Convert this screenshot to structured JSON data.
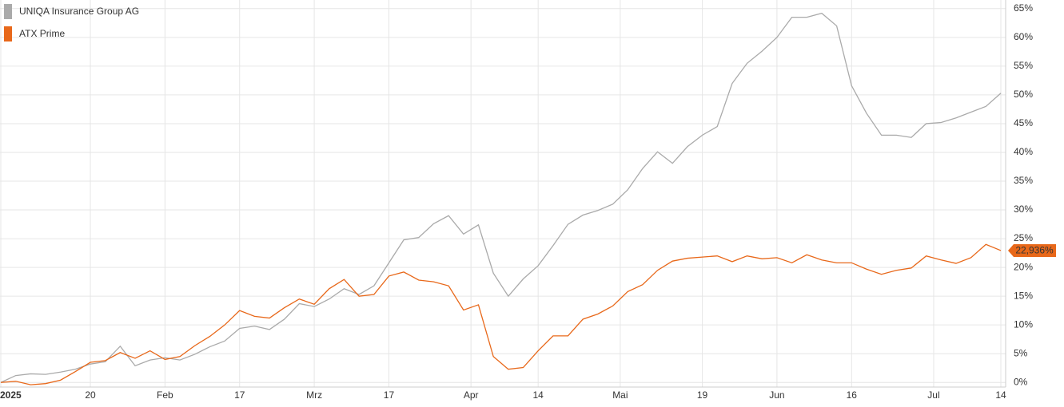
{
  "chart_data": {
    "type": "line",
    "legend": "top-left",
    "grid": true,
    "x": [
      0,
      2,
      4,
      6,
      8,
      10,
      12,
      14,
      16,
      18,
      20,
      22,
      24,
      26,
      28,
      30,
      32,
      34,
      36,
      38,
      40,
      42,
      44,
      46,
      48,
      50,
      52,
      54,
      56,
      58,
      60,
      62,
      64,
      66,
      68,
      70,
      72,
      74,
      76,
      78,
      80,
      82,
      84,
      86,
      88,
      90,
      92,
      94,
      96,
      98,
      100,
      102,
      104,
      106,
      108,
      110,
      112,
      114,
      116,
      118,
      120,
      122,
      124,
      126,
      128,
      130,
      132,
      134
    ],
    "xlim": [
      0,
      134
    ],
    "xticks": [
      {
        "value": 0,
        "label": "2025"
      },
      {
        "value": 12,
        "label": "20"
      },
      {
        "value": 22,
        "label": "Feb"
      },
      {
        "value": 32,
        "label": "17"
      },
      {
        "value": 42,
        "label": "Mrz"
      },
      {
        "value": 52,
        "label": "17"
      },
      {
        "value": 63,
        "label": "Apr"
      },
      {
        "value": 72,
        "label": "14"
      },
      {
        "value": 83,
        "label": "Mai"
      },
      {
        "value": 94,
        "label": "19"
      },
      {
        "value": 104,
        "label": "Jun"
      },
      {
        "value": 114,
        "label": "16"
      },
      {
        "value": 125,
        "label": "Jul"
      },
      {
        "value": 134,
        "label": "14"
      }
    ],
    "ylim": [
      -0.8,
      66.5
    ],
    "yticks": [
      {
        "value": 0,
        "label": "0%"
      },
      {
        "value": 5,
        "label": "5%"
      },
      {
        "value": 10,
        "label": "10%"
      },
      {
        "value": 15,
        "label": "15%"
      },
      {
        "value": 20,
        "label": "20%"
      },
      {
        "value": 25,
        "label": "25%"
      },
      {
        "value": 30,
        "label": "30%"
      },
      {
        "value": 35,
        "label": "35%"
      },
      {
        "value": 40,
        "label": "40%"
      },
      {
        "value": 45,
        "label": "45%"
      },
      {
        "value": 50,
        "label": "50%"
      },
      {
        "value": 55,
        "label": "55%"
      },
      {
        "value": 60,
        "label": "60%"
      },
      {
        "value": 65,
        "label": "65%"
      }
    ],
    "series": [
      {
        "name": "UNIQA Insurance Group AG",
        "color": "#aaaaaa",
        "values": [
          0,
          1.2,
          1.5,
          1.4,
          1.8,
          2.3,
          3.2,
          3.6,
          6.3,
          2.9,
          3.9,
          4.3,
          3.9,
          4.9,
          6.2,
          7.2,
          9.4,
          9.8,
          9.2,
          11,
          13.7,
          13.2,
          14.5,
          16.3,
          15.3,
          16.8,
          20.8,
          24.8,
          25.2,
          27.6,
          29,
          25.8,
          27.4,
          19,
          15,
          18,
          20.3,
          23.8,
          27.5,
          29.1,
          29.9,
          31,
          33.5,
          37.2,
          40.1,
          38.1,
          41,
          43,
          44.5,
          52,
          55.5,
          57.6,
          60,
          63.5,
          63.5,
          64.2,
          62,
          51.6,
          46.8,
          43,
          43,
          42.6,
          45,
          45.2,
          46,
          47,
          48,
          50.3
        ]
      },
      {
        "name": "ATX Prime",
        "color": "#e8681a",
        "values": [
          0,
          0.2,
          -0.4,
          -0.2,
          0.4,
          1.9,
          3.5,
          3.8,
          5.2,
          4.2,
          5.5,
          4,
          4.5,
          6.4,
          8,
          10,
          12.5,
          11.5,
          11.2,
          13,
          14.5,
          13.6,
          16.3,
          17.9,
          15,
          15.3,
          18.5,
          19.2,
          17.8,
          17.5,
          16.8,
          12.6,
          13.5,
          4.5,
          2.3,
          2.6,
          5.5,
          8.1,
          8.1,
          11,
          11.9,
          13.3,
          15.8,
          17,
          19.5,
          21.1,
          21.6,
          21.8,
          22,
          21,
          22,
          21.5,
          21.7,
          20.8,
          22.2,
          21.3,
          20.8,
          20.8,
          19.7,
          18.8,
          19.5,
          19.9,
          22,
          21.3,
          20.7,
          21.7,
          24,
          22.936
        ]
      }
    ],
    "annotation": {
      "value": 22.936,
      "label": "22,936%"
    }
  }
}
